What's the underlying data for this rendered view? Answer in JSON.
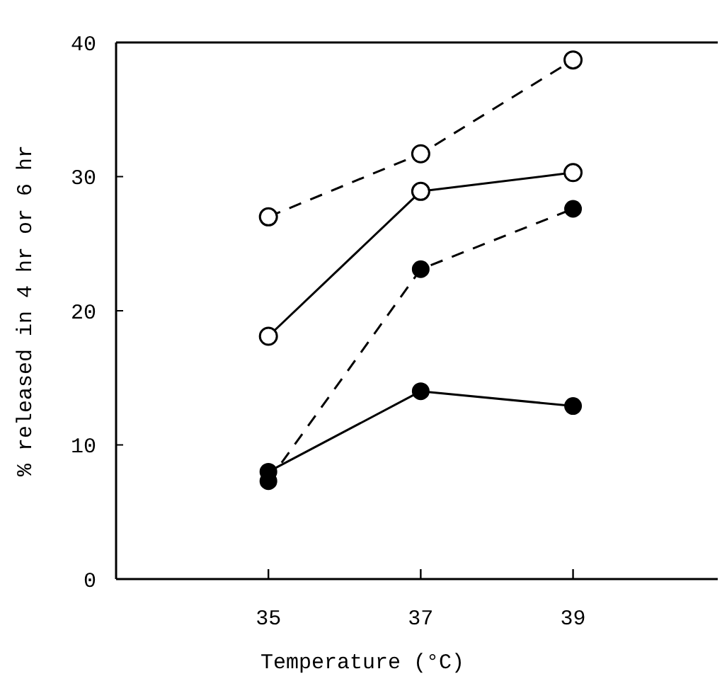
{
  "chart_data": {
    "type": "line",
    "xlabel": "Temperature (°C)",
    "ylabel": "% released in 4 hr or 6 hr",
    "x": [
      35,
      37,
      39
    ],
    "xlim": [
      33,
      40.9
    ],
    "xticks": [
      35,
      37,
      39
    ],
    "ylim": [
      0,
      40
    ],
    "yticks": [
      0,
      10,
      20,
      30,
      40
    ],
    "grid": false,
    "series": [
      {
        "color": "#000000",
        "values": [
          27.0,
          31.7,
          38.7
        ],
        "marker": "circle",
        "line_style": "dashed"
      },
      {
        "color": "#000000",
        "values": [
          18.1,
          28.9,
          30.3
        ],
        "marker": "circle",
        "line_style": "solid"
      },
      {
        "color": "#000000",
        "values": [
          7.3,
          23.1,
          27.6
        ],
        "marker": "circle",
        "line_style": "dashed"
      },
      {
        "color": "#000000",
        "values": [
          8.0,
          14.0,
          12.9
        ],
        "marker": "circle",
        "line_style": "solid"
      }
    ]
  }
}
